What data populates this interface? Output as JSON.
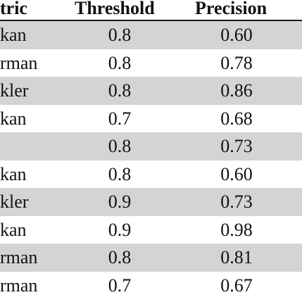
{
  "table": {
    "headers": {
      "metric": "tric",
      "threshold": "Threshold",
      "precision": "Precision"
    },
    "rows": [
      {
        "metric": "kan",
        "threshold": "0.8",
        "precision": "0.60",
        "shaded": true
      },
      {
        "metric": "rman",
        "threshold": "0.8",
        "precision": "0.78",
        "shaded": false
      },
      {
        "metric": "kler",
        "threshold": "0.8",
        "precision": "0.86",
        "shaded": true
      },
      {
        "metric": "kan",
        "threshold": "0.7",
        "precision": "0.68",
        "shaded": false
      },
      {
        "metric": "",
        "threshold": "0.8",
        "precision": "0.73",
        "shaded": true
      },
      {
        "metric": "kan",
        "threshold": "0.8",
        "precision": "0.60",
        "shaded": false
      },
      {
        "metric": "kler",
        "threshold": "0.9",
        "precision": "0.73",
        "shaded": true
      },
      {
        "metric": "kan",
        "threshold": "0.9",
        "precision": "0.98",
        "shaded": false
      },
      {
        "metric": "rman",
        "threshold": "0.8",
        "precision": "0.81",
        "shaded": true
      },
      {
        "metric": "rman",
        "threshold": "0.7",
        "precision": "0.67",
        "shaded": false
      }
    ]
  },
  "colors": {
    "shaded_row": "#d4d4d4",
    "plain_row": "#ffffff",
    "text": "#111111"
  }
}
